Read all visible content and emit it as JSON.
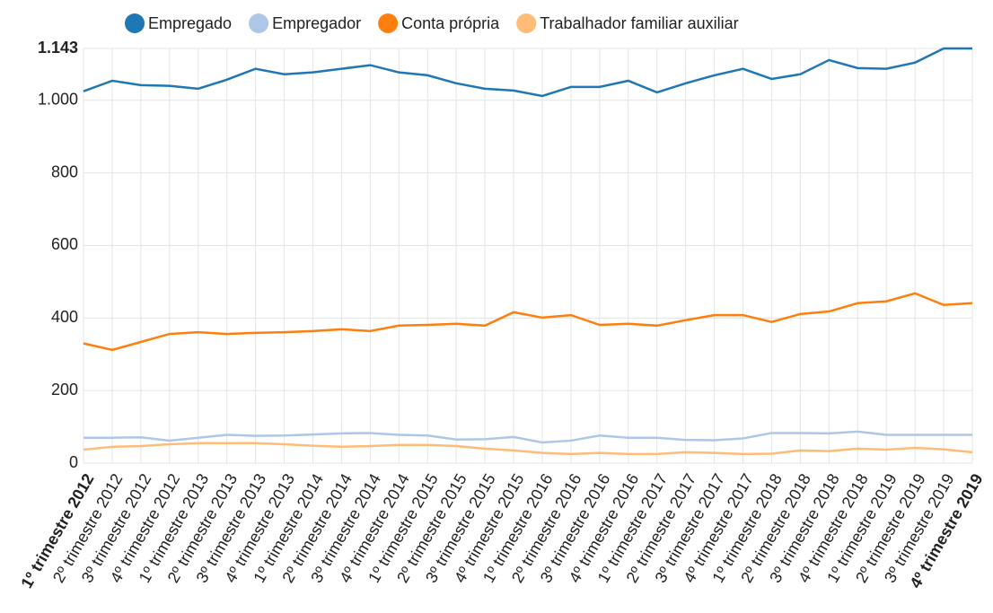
{
  "chart_data": {
    "type": "line",
    "categories": [
      "1º trimestre 2012",
      "2º trimestre 2012",
      "3º trimestre 2012",
      "4º trimestre 2012",
      "1º trimestre 2013",
      "2º trimestre 2013",
      "3º trimestre 2013",
      "4º trimestre 2013",
      "1º trimestre 2014",
      "2º trimestre 2014",
      "3º trimestre 2014",
      "4º trimestre 2014",
      "1º trimestre 2015",
      "2º trimestre 2015",
      "3º trimestre 2015",
      "4º trimestre 2015",
      "1º trimestre 2016",
      "2º trimestre 2016",
      "3º trimestre 2016",
      "4º trimestre 2016",
      "1º trimestre 2017",
      "2º trimestre 2017",
      "3º trimestre 2017",
      "4º trimestre 2017",
      "1º trimestre 2018",
      "2º trimestre 2018",
      "3º trimestre 2018",
      "4º trimestre 2018",
      "1º trimestre 2019",
      "2º trimestre 2019",
      "3º trimestre 2019",
      "4º trimestre 2019"
    ],
    "series": [
      {
        "name": "Empregado",
        "color": "#1f77b4",
        "values": [
          1025,
          1054,
          1042,
          1040,
          1032,
          1057,
          1087,
          1072,
          1077,
          1087,
          1097,
          1077,
          1069,
          1047,
          1032,
          1027,
          1012,
          1037,
          1037,
          1054,
          1022,
          1047,
          1069,
          1087,
          1059,
          1072,
          1111,
          1089,
          1087,
          1104,
          1143,
          1143
        ]
      },
      {
        "name": "Empregador",
        "color": "#aec7e8",
        "values": [
          70,
          70,
          71,
          62,
          70,
          78,
          75,
          76,
          79,
          82,
          83,
          78,
          76,
          65,
          66,
          72,
          57,
          62,
          76,
          70,
          70,
          64,
          63,
          68,
          83,
          83,
          82,
          87,
          78,
          78,
          78,
          78
        ]
      },
      {
        "name": "Conta própria",
        "color": "#ff7f0e",
        "values": [
          330,
          312,
          334,
          356,
          361,
          356,
          359,
          361,
          364,
          369,
          364,
          379,
          381,
          384,
          379,
          416,
          401,
          408,
          381,
          384,
          379,
          394,
          408,
          408,
          389,
          411,
          418,
          441,
          446,
          468,
          436,
          441
        ]
      },
      {
        "name": "Trabalhador familiar auxiliar",
        "color": "#ffbb78",
        "values": [
          37,
          45,
          47,
          52,
          55,
          55,
          55,
          52,
          48,
          45,
          47,
          50,
          50,
          47,
          40,
          35,
          28,
          25,
          28,
          25,
          25,
          30,
          28,
          25,
          26,
          35,
          33,
          40,
          37,
          42,
          38,
          30
        ]
      }
    ],
    "ylim": [
      0,
      1143
    ],
    "yticks": [
      0,
      200,
      400,
      600,
      800,
      {
        "value": 1000,
        "label": "1.000"
      },
      {
        "value": 1143,
        "label": "1.143"
      }
    ],
    "grid": true,
    "legend": "top"
  }
}
